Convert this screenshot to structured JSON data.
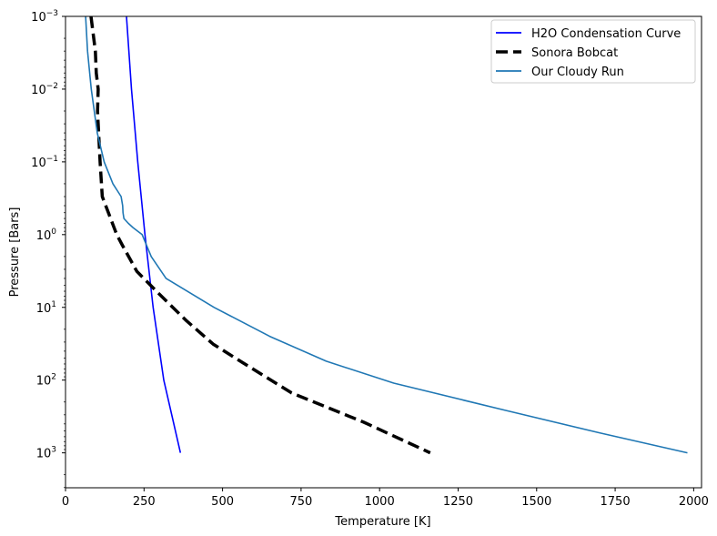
{
  "chart_data": {
    "type": "line",
    "title": "",
    "xlabel": "Temperature [K]",
    "ylabel": "Pressure [Bars]",
    "xlim": [
      0,
      2025
    ],
    "ylim_log10": [
      3.48,
      -3
    ],
    "yscale": "log",
    "y_inverted": true,
    "grid": false,
    "legend_position": "upper right",
    "x_ticks": [
      0,
      250,
      500,
      750,
      1000,
      1250,
      1500,
      1750,
      2000
    ],
    "x_tick_labels": [
      "0",
      "250",
      "500",
      "750",
      "1000",
      "1250",
      "1500",
      "1750",
      "2000"
    ],
    "y_ticks_log10": [
      -3,
      -2,
      -1,
      0,
      1,
      2,
      3
    ],
    "y_tick_labels": [
      {
        "base": "10",
        "exp": "−3"
      },
      {
        "base": "10",
        "exp": "−2"
      },
      {
        "base": "10",
        "exp": "−1"
      },
      {
        "base": "10",
        "exp": "0"
      },
      {
        "base": "10",
        "exp": "1"
      },
      {
        "base": "10",
        "exp": "2"
      },
      {
        "base": "10",
        "exp": "3"
      }
    ],
    "series": [
      {
        "name": "H2O Condensation Curve",
        "color": "#0000ff",
        "style": "solid",
        "width": 1.6,
        "points": [
          [
            194,
            0.001
          ],
          [
            210,
            0.01
          ],
          [
            230,
            0.1
          ],
          [
            253,
            1
          ],
          [
            279,
            10
          ],
          [
            313,
            100
          ],
          [
            366,
            1000
          ]
        ]
      },
      {
        "name": "Sonora Bobcat",
        "color": "#000000",
        "style": "dashed",
        "width": 3.5,
        "points": [
          [
            81,
            0.001
          ],
          [
            95,
            0.003
          ],
          [
            98,
            0.006
          ],
          [
            104,
            0.01
          ],
          [
            102,
            0.02
          ],
          [
            110,
            0.1
          ],
          [
            117,
            0.3
          ],
          [
            163,
            1
          ],
          [
            181,
            1.4
          ],
          [
            227,
            3.2
          ],
          [
            296,
            6.4
          ],
          [
            383,
            15
          ],
          [
            470,
            32
          ],
          [
            560,
            56
          ],
          [
            720,
            150
          ],
          [
            950,
            380
          ],
          [
            1161,
            1000
          ]
        ]
      },
      {
        "name": "Our Cloudy Run",
        "color": "#1f77b4",
        "style": "solid",
        "width": 1.6,
        "points": [
          [
            64,
            0.001
          ],
          [
            70,
            0.003
          ],
          [
            82,
            0.01
          ],
          [
            101,
            0.04
          ],
          [
            123,
            0.1
          ],
          [
            151,
            0.2
          ],
          [
            177,
            0.3
          ],
          [
            182,
            0.4
          ],
          [
            183,
            0.5
          ],
          [
            186,
            0.6
          ],
          [
            200,
            0.7
          ],
          [
            215,
            0.8
          ],
          [
            244,
            1
          ],
          [
            273,
            2
          ],
          [
            320,
            4
          ],
          [
            473,
            10
          ],
          [
            650,
            25
          ],
          [
            830,
            55
          ],
          [
            1045,
            110
          ],
          [
            1400,
            260
          ],
          [
            1700,
            530
          ],
          [
            1980,
            1000
          ]
        ]
      }
    ]
  },
  "legend": {
    "items": [
      {
        "label": "H2O Condensation Curve",
        "color": "#0000ff",
        "style": "solid"
      },
      {
        "label": "Sonora Bobcat",
        "color": "#000000",
        "style": "dashed"
      },
      {
        "label": "Our Cloudy Run",
        "color": "#1f77b4",
        "style": "solid"
      }
    ]
  }
}
